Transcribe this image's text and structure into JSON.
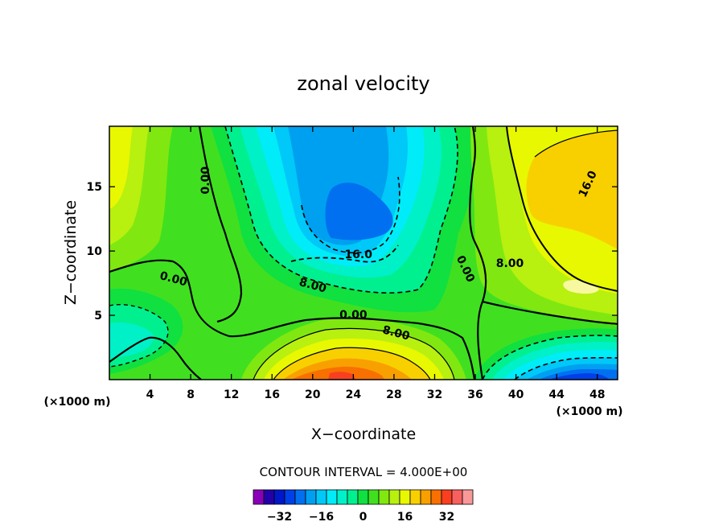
{
  "chart_data": {
    "type": "heatmap",
    "title": "zonal velocity",
    "xlabel": "X−coordinate",
    "ylabel": "Z−coordinate",
    "x_unit": "(×1000 m)",
    "x_unit_right": "(×1000 m)",
    "xlim": [
      0,
      50
    ],
    "ylim": [
      0,
      19.7
    ],
    "x_ticks": [
      4,
      8,
      12,
      16,
      20,
      24,
      28,
      32,
      36,
      40,
      44,
      48
    ],
    "y_ticks": [
      5,
      10,
      15
    ],
    "contour_interval_label": "CONTOUR INTERVAL = 4.000E+00",
    "contour_interval": 4,
    "colorbar": {
      "levels": [
        -38,
        -34,
        -30,
        -26,
        -22,
        -18,
        -14,
        -10,
        -6,
        -2,
        2,
        6,
        10,
        14,
        18,
        22,
        26,
        30,
        34,
        38
      ],
      "colors": [
        "#8a00b8",
        "#2400a8",
        "#0018c8",
        "#0040e8",
        "#0070f0",
        "#00a0f0",
        "#00c8f8",
        "#00ecf8",
        "#00f0c8",
        "#00f090",
        "#10e040",
        "#40e020",
        "#80e810",
        "#b8f010",
        "#e8f800",
        "#f8d000",
        "#f8a000",
        "#f87000",
        "#f84020",
        "#f86060",
        "#f89898"
      ],
      "tick_labels": [
        "−32",
        "−16",
        "0",
        "16",
        "32"
      ],
      "tick_values": [
        -32,
        -16,
        0,
        16,
        32
      ]
    },
    "contour_labels": [
      {
        "text": "0.00",
        "x": 9.5,
        "z": 15.5,
        "rotate": -90
      },
      {
        "text": "16.0",
        "x": 24.5,
        "z": 9.7,
        "rotate": 0
      },
      {
        "text": "8.00",
        "x": 20.0,
        "z": 7.3,
        "rotate": 15
      },
      {
        "text": "0.00",
        "x": 6.3,
        "z": 7.8,
        "rotate": 15
      },
      {
        "text": "0.00",
        "x": 24.0,
        "z": 5.0,
        "rotate": 0
      },
      {
        "text": "8.00",
        "x": 28.2,
        "z": 3.6,
        "rotate": 15
      },
      {
        "text": "0.00",
        "x": 35.0,
        "z": 8.6,
        "rotate": 65
      },
      {
        "text": "8.00",
        "x": 39.4,
        "z": 9.0,
        "rotate": 0
      },
      {
        "text": "16.0",
        "x": 47.1,
        "z": 15.2,
        "rotate": -65
      }
    ],
    "features": [
      {
        "kind": "min",
        "value": -20,
        "x": 24,
        "z": 13
      },
      {
        "kind": "min",
        "value": -28,
        "x": 46,
        "z": 0.5
      },
      {
        "kind": "max",
        "value": 24,
        "x": 24,
        "z": 0.5
      },
      {
        "kind": "max",
        "value": 18,
        "x": 46,
        "z": 15.5
      }
    ]
  }
}
